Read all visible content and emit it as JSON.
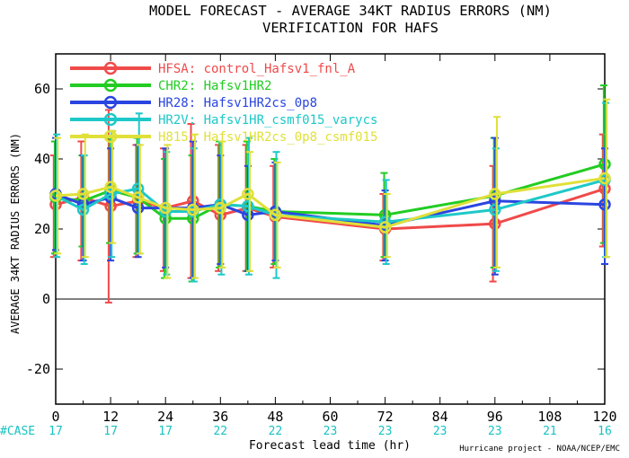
{
  "chart_data": {
    "type": "line",
    "title": "MODEL FORECAST - AVERAGE 34KT RADIUS ERRORS (NM)",
    "subtitle": "VERIFICATION FOR HAFS",
    "xlabel": "Forecast lead time (hr)",
    "ylabel": "AVERAGE 34KT RADIUS ERRORS (NM)",
    "xlim": [
      0,
      120
    ],
    "ylim": [
      -30,
      70
    ],
    "x_ticks": [
      0,
      12,
      24,
      36,
      48,
      60,
      72,
      84,
      96,
      108,
      120
    ],
    "y_ticks": [
      -20,
      0,
      20,
      40,
      60
    ],
    "grid": false,
    "zero_line": true,
    "legend_placement": "top-left",
    "case_label": "#CASE",
    "case_x": [
      0,
      12,
      24,
      36,
      48,
      60,
      72,
      84,
      96,
      108,
      120
    ],
    "case_counts": [
      "17",
      "17",
      "17",
      "22",
      "22",
      "23",
      "23",
      "23",
      "23",
      "21",
      "16"
    ],
    "credit": "Hurricane project - NOAA/NCEP/EMC",
    "series": [
      {
        "id": "HFSA",
        "desc": "control_Hafsv1_fnl_A",
        "color": "#f04a4a",
        "x": [
          0,
          6,
          12,
          18,
          24,
          30,
          36,
          42,
          48,
          72,
          96,
          120
        ],
        "y": [
          27,
          29,
          26.5,
          28,
          26,
          28,
          24,
          26,
          23.5,
          20,
          21.5,
          31.5
        ],
        "err_lo": [
          12,
          11,
          -1,
          12,
          8,
          6,
          8,
          8,
          9,
          11,
          5,
          15
        ],
        "err_hi": [
          41,
          45,
          54,
          44,
          43,
          50,
          44,
          44,
          38,
          30,
          38,
          47
        ]
      },
      {
        "id": "CHR2",
        "desc": "Hafsv1HR2",
        "color": "#22cc22",
        "x": [
          0,
          6,
          12,
          18,
          24,
          30,
          36,
          42,
          48,
          72,
          96,
          120
        ],
        "y": [
          29,
          28,
          31,
          29,
          23,
          23,
          27,
          26.5,
          25,
          24,
          29.5,
          38.5
        ],
        "err_lo": [
          13,
          15,
          16,
          13,
          6,
          5,
          9,
          8,
          10,
          12,
          9,
          16
        ],
        "err_hi": [
          45,
          41,
          46,
          46,
          40,
          41,
          45,
          45,
          40,
          36,
          46,
          61
        ]
      },
      {
        "id": "HR28",
        "desc": "Hafsv1HR2cs_0p8",
        "color": "#2a45e0",
        "x": [
          0,
          6,
          12,
          18,
          24,
          30,
          36,
          42,
          48,
          72,
          96,
          120
        ],
        "y": [
          30,
          27,
          29,
          26,
          26,
          26,
          27,
          24,
          25,
          21,
          28,
          27
        ],
        "err_lo": [
          14,
          11,
          11,
          12,
          9,
          6,
          10,
          8,
          11,
          11,
          7,
          10
        ],
        "err_hi": [
          46,
          41,
          43,
          44,
          43,
          45,
          41,
          38,
          39,
          31,
          46,
          43
        ]
      },
      {
        "id": "HR2V",
        "desc": "Hafsv1HR_csmf015_varycs",
        "color": "#1ec8c8",
        "x": [
          0,
          6,
          12,
          18,
          24,
          30,
          36,
          42,
          48,
          72,
          96,
          120
        ],
        "y": [
          29.5,
          25.5,
          30,
          31.5,
          25,
          25,
          27,
          26.5,
          24,
          22,
          25.5,
          34
        ],
        "err_lo": [
          12,
          10,
          12,
          13,
          7,
          5,
          7,
          7,
          6,
          10,
          8,
          12
        ],
        "err_hi": [
          47,
          41,
          48,
          53,
          42,
          43,
          45,
          46,
          42,
          34,
          43,
          56
        ]
      },
      {
        "id": "H815",
        "desc": "Hafsv1HR2cs_0p8_csmf015",
        "color": "#e0e03a",
        "x": [
          0,
          6,
          12,
          18,
          24,
          30,
          36,
          42,
          48,
          72,
          96,
          120
        ],
        "y": [
          29.5,
          30,
          32,
          29,
          26,
          25.5,
          26,
          30,
          24,
          20.5,
          30,
          34.5
        ],
        "err_lo": [
          13,
          12,
          16,
          13,
          6,
          6,
          9,
          8,
          9,
          12,
          9,
          12
        ],
        "err_hi": [
          46,
          47,
          48,
          44,
          44,
          47,
          45,
          42,
          39,
          30,
          52,
          57
        ]
      }
    ]
  }
}
